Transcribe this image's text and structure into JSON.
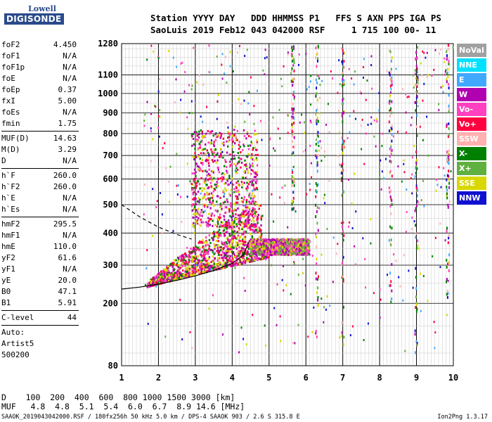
{
  "logo": {
    "line1": "Lowell",
    "line2": "DIGISONDE"
  },
  "header": {
    "line1": "Station YYYY DAY   DDD HHMMSS P1   FFS S AXN PPS IGA PS",
    "line2": "SaoLuis 2019 Feb12 043 042000 RSF     1 715 100 00- 11"
  },
  "params_group1": [
    {
      "name": "foF2",
      "value": "4.450"
    },
    {
      "name": "foF1",
      "value": "N/A"
    },
    {
      "name": "foF1p",
      "value": "N/A"
    },
    {
      "name": "foE",
      "value": "N/A"
    },
    {
      "name": "foEp",
      "value": "0.37"
    },
    {
      "name": "fxI",
      "value": "5.00"
    },
    {
      "name": "foEs",
      "value": "N/A"
    },
    {
      "name": "fmin",
      "value": "1.75"
    }
  ],
  "params_group2": [
    {
      "name": "MUF(D)",
      "value": "14.63"
    },
    {
      "name": "M(D)",
      "value": "3.29"
    },
    {
      "name": "D",
      "value": "N/A"
    }
  ],
  "params_group3": [
    {
      "name": "h`F",
      "value": "260.0"
    },
    {
      "name": "h`F2",
      "value": "260.0"
    },
    {
      "name": "h`E",
      "value": "N/A"
    },
    {
      "name": "h`Es",
      "value": "N/A"
    }
  ],
  "params_group4": [
    {
      "name": "hmF2",
      "value": "295.5"
    },
    {
      "name": "hmF1",
      "value": "N/A"
    },
    {
      "name": "hmE",
      "value": "110.0"
    },
    {
      "name": "yF2",
      "value": "61.6"
    },
    {
      "name": "yF1",
      "value": "N/A"
    },
    {
      "name": "yE",
      "value": "20.0"
    },
    {
      "name": "B0",
      "value": "47.1"
    },
    {
      "name": "B1",
      "value": "5.91"
    }
  ],
  "params_group5": [
    {
      "name": "C-level",
      "value": "44"
    }
  ],
  "auto": {
    "line1": "Auto:",
    "line2": "Artist5",
    "line3": "500200"
  },
  "legend": [
    {
      "label": "NoVal",
      "color": "#a0a0a0"
    },
    {
      "label": "NNE",
      "color": "#00e0ff"
    },
    {
      "label": "E",
      "color": "#40a8ff"
    },
    {
      "label": "W",
      "color": "#b000b0"
    },
    {
      "label": "Vo-",
      "color": "#ff40c0"
    },
    {
      "label": "Vo+",
      "color": "#ff0040"
    },
    {
      "label": "SSW",
      "color": "#ffb0b0"
    },
    {
      "label": "X-",
      "color": "#008000"
    },
    {
      "label": "X+",
      "color": "#60b040"
    },
    {
      "label": "SSE",
      "color": "#d8d800"
    },
    {
      "label": "NNW",
      "color": "#1010d0"
    }
  ],
  "bottom": {
    "line1": "D    100  200  400  600  800 1000 1500 3000 [km]",
    "line2": "MUF   4.8  4.8  5.1  5.4  6.0  6.7  8.9 14.6 [MHz]"
  },
  "footer": "SAAOK_2019043042000.RSF / 180fx256h 50 kHz 5.0 km / DPS-4 SAAOK 903 / 2.6 S 315.8 E",
  "version": "Ion2Png 1.3.17",
  "chart_data": {
    "type": "scatter",
    "title": "",
    "xlabel": "",
    "ylabel": "",
    "xlim": [
      1,
      10
    ],
    "ylim": [
      80,
      1280
    ],
    "y_scale": "sqrt",
    "x_ticks": [
      "1",
      "2",
      "3",
      "4",
      "5",
      "6",
      "7",
      "8",
      "9",
      "10"
    ],
    "y_ticks": [
      "80",
      "200",
      "300",
      "400",
      "500",
      "600",
      "700",
      "800",
      "900",
      "1000",
      "1100",
      "1280"
    ],
    "traces": [
      {
        "name": "O-trace (solid)",
        "x": [
          1.0,
          1.5,
          2.0,
          2.5,
          3.0,
          3.5,
          4.0,
          4.3,
          4.45
        ],
        "y": [
          235,
          240,
          248,
          258,
          270,
          285,
          305,
          330,
          370
        ]
      },
      {
        "name": "dashed",
        "x": [
          1.0,
          1.5,
          2.0,
          2.5,
          2.9
        ],
        "y": [
          500,
          455,
          420,
          395,
          380
        ]
      }
    ],
    "echo_clusters": [
      {
        "x": [
          1.7,
          5.0
        ],
        "y": [
          240,
          420
        ],
        "colors": [
          "#ff0040",
          "#ff40c0",
          "#b000b0",
          "#008000",
          "#d8d800"
        ]
      },
      {
        "x": [
          2.9,
          4.7
        ],
        "y": [
          420,
          820
        ],
        "colors": [
          "#b000b0",
          "#ff40c0",
          "#008000",
          "#d8d800",
          "#ff0040"
        ]
      },
      {
        "x": [
          4.5,
          6.1
        ],
        "y": [
          330,
          380
        ],
        "colors": [
          "#d8d800",
          "#60b040",
          "#ff40c0",
          "#b000b0"
        ]
      }
    ]
  }
}
